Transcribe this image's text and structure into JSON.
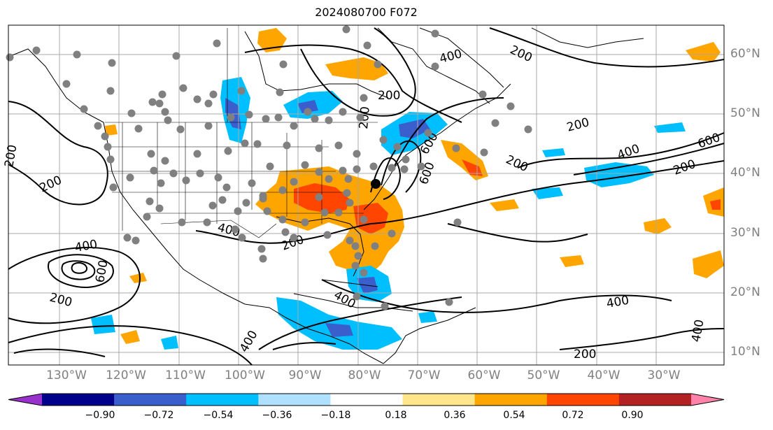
{
  "title": "2024080700 F072",
  "colors": {
    "cmap": [
      "#9932cc",
      "#00008b",
      "#3a5fcd",
      "#00bfff",
      "#b0e0ff",
      "#ffffff",
      "#ffe68a",
      "#ffa500",
      "#ff4500",
      "#b22222",
      "#ff82ab"
    ],
    "coast": "#000000",
    "grid": "#a9a9a9",
    "dots": "#808080"
  },
  "lat_labels": [
    "60°N",
    "50°N",
    "40°N",
    "30°N",
    "20°N",
    "10°N"
  ],
  "lon_labels": [
    "130°W",
    "120°W",
    "110°W",
    "100°W",
    "90°W",
    "80°W",
    "70°W",
    "60°W",
    "50°W",
    "40°W",
    "30°W"
  ],
  "colorbar": {
    "ticks": [
      "−0.90",
      "−0.72",
      "−0.54",
      "−0.36",
      "−0.18",
      "0.18",
      "0.36",
      "0.54",
      "0.72",
      "0.90"
    ]
  },
  "contour_labels": [
    "200",
    "200",
    "200",
    "200",
    "200",
    "200",
    "200",
    "200",
    "200",
    "200",
    "200",
    "400",
    "400",
    "400",
    "400",
    "400",
    "400",
    "400",
    "400",
    "600",
    "600",
    "600",
    "600"
  ]
}
